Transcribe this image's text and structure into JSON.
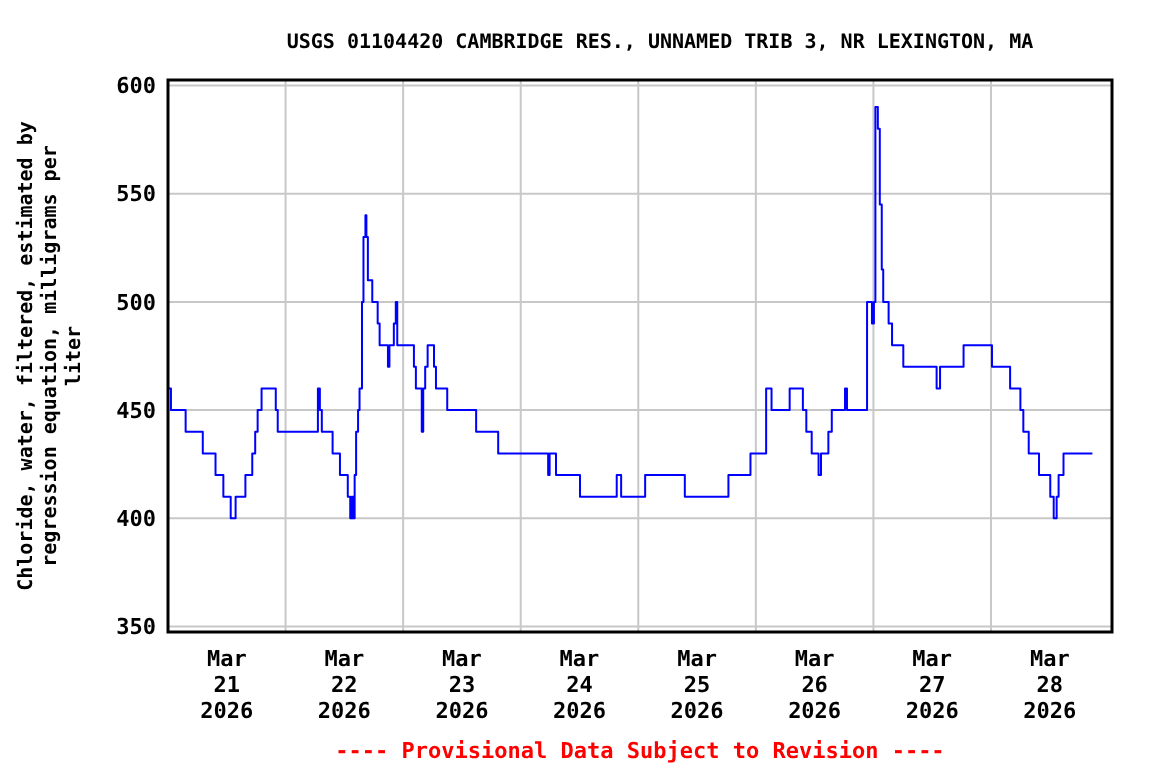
{
  "chart_data": {
    "type": "step",
    "title": "USGS 01104420 CAMBRIDGE RES., UNNAMED TRIB 3, NR LEXINGTON, MA",
    "ylabel": "Chloride, water, filtered, estimated by regression equation, milligrams per liter",
    "annotations": [
      "---- Provisional Data Subject to Revision ----"
    ],
    "x": [
      "2026-03-21T00:00",
      "2026-03-21T00:36",
      "2026-03-21T03:36",
      "2026-03-21T07:06",
      "2026-03-21T09:42",
      "2026-03-21T11:18",
      "2026-03-21T12:48",
      "2026-03-21T13:48",
      "2026-03-21T15:48",
      "2026-03-21T17:12",
      "2026-03-21T17:48",
      "2026-03-21T18:18",
      "2026-03-21T19:06",
      "2026-03-21T22:00",
      "2026-03-21T22:24",
      "2026-03-22T06:36",
      "2026-03-22T07:00",
      "2026-03-22T07:24",
      "2026-03-22T09:36",
      "2026-03-22T11:06",
      "2026-03-22T12:42",
      "2026-03-22T13:12",
      "2026-03-22T13:30",
      "2026-03-22T13:48",
      "2026-03-22T14:06",
      "2026-03-22T14:24",
      "2026-03-22T14:48",
      "2026-03-22T15:06",
      "2026-03-22T15:36",
      "2026-03-22T15:54",
      "2026-03-22T16:18",
      "2026-03-22T16:30",
      "2026-03-22T16:48",
      "2026-03-22T17:42",
      "2026-03-22T18:48",
      "2026-03-22T19:12",
      "2026-03-22T20:54",
      "2026-03-22T21:12",
      "2026-03-22T22:06",
      "2026-03-22T22:30",
      "2026-03-22T22:48",
      "2026-03-23T02:12",
      "2026-03-23T02:36",
      "2026-03-23T03:48",
      "2026-03-23T04:06",
      "2026-03-23T04:30",
      "2026-03-23T05:00",
      "2026-03-23T06:18",
      "2026-03-23T06:42",
      "2026-03-23T09:00",
      "2026-03-23T14:54",
      "2026-03-23T19:24",
      "2026-03-24T05:36",
      "2026-03-24T05:54",
      "2026-03-24T07:12",
      "2026-03-24T12:06",
      "2026-03-24T19:36",
      "2026-03-24T20:30",
      "2026-03-25T01:24",
      "2026-03-25T09:30",
      "2026-03-25T18:24",
      "2026-03-25T22:54",
      "2026-03-26T02:06",
      "2026-03-26T03:12",
      "2026-03-26T06:54",
      "2026-03-26T09:36",
      "2026-03-26T10:18",
      "2026-03-26T11:24",
      "2026-03-26T12:48",
      "2026-03-26T13:18",
      "2026-03-26T14:48",
      "2026-03-26T15:30",
      "2026-03-26T18:12",
      "2026-03-26T18:36",
      "2026-03-26T22:42",
      "2026-03-26T23:42",
      "2026-03-27T00:06",
      "2026-03-27T00:24",
      "2026-03-27T00:54",
      "2026-03-27T01:18",
      "2026-03-27T01:42",
      "2026-03-27T02:00",
      "2026-03-27T03:06",
      "2026-03-27T03:48",
      "2026-03-27T06:06",
      "2026-03-27T12:54",
      "2026-03-27T13:36",
      "2026-03-27T18:24",
      "2026-03-28T00:12",
      "2026-03-28T03:54",
      "2026-03-28T06:00",
      "2026-03-28T06:36",
      "2026-03-28T07:42",
      "2026-03-28T09:48",
      "2026-03-28T12:06",
      "2026-03-28T12:48",
      "2026-03-28T13:24",
      "2026-03-28T13:48",
      "2026-03-28T14:48",
      "2026-03-28T20:42"
    ],
    "series": [
      {
        "color": "#0000ff",
        "values": [
          460,
          450,
          440,
          430,
          420,
          410,
          400,
          410,
          420,
          430,
          440,
          450,
          460,
          450,
          440,
          460,
          450,
          440,
          430,
          420,
          410,
          400,
          410,
          400,
          420,
          440,
          450,
          460,
          500,
          530,
          540,
          530,
          510,
          500,
          490,
          480,
          470,
          480,
          490,
          500,
          480,
          470,
          460,
          440,
          460,
          470,
          480,
          470,
          460,
          450,
          440,
          430,
          420,
          430,
          420,
          410,
          420,
          410,
          420,
          410,
          420,
          430,
          460,
          450,
          460,
          450,
          440,
          430,
          420,
          430,
          440,
          450,
          460,
          450,
          500,
          490,
          500,
          590,
          580,
          545,
          515,
          500,
          490,
          480,
          470,
          460,
          470,
          480,
          470,
          460,
          450,
          440,
          430,
          420,
          410,
          400,
          410,
          420,
          430,
          430
        ]
      }
    ],
    "xlim": [
      "2026-03-21T00:00",
      "2026-03-29T00:42"
    ],
    "xticks": [
      {
        "value": "2026-03-21T12:00",
        "label": "Mar\n21\n2026"
      },
      {
        "value": "2026-03-22T12:00",
        "label": "Mar\n22\n2026"
      },
      {
        "value": "2026-03-23T12:00",
        "label": "Mar\n23\n2026"
      },
      {
        "value": "2026-03-24T12:00",
        "label": "Mar\n24\n2026"
      },
      {
        "value": "2026-03-25T12:00",
        "label": "Mar\n25\n2026"
      },
      {
        "value": "2026-03-26T12:00",
        "label": "Mar\n26\n2026"
      },
      {
        "value": "2026-03-27T12:00",
        "label": "Mar\n27\n2026"
      },
      {
        "value": "2026-03-28T12:00",
        "label": "Mar\n28\n2026"
      },
      {
        "value": "2026-03-22T00:00",
        "label": null
      },
      {
        "value": "2026-03-23T00:00",
        "label": null
      },
      {
        "value": "2026-03-24T00:00",
        "label": null
      },
      {
        "value": "2026-03-25T00:00",
        "label": null
      },
      {
        "value": "2026-03-26T00:00",
        "label": null
      },
      {
        "value": "2026-03-27T00:00",
        "label": null
      },
      {
        "value": "2026-03-28T00:00",
        "label": null
      }
    ],
    "ylim": [
      347.5,
      602.5
    ],
    "yticks": [
      350,
      400,
      450,
      500,
      550,
      600
    ],
    "grid": true
  }
}
